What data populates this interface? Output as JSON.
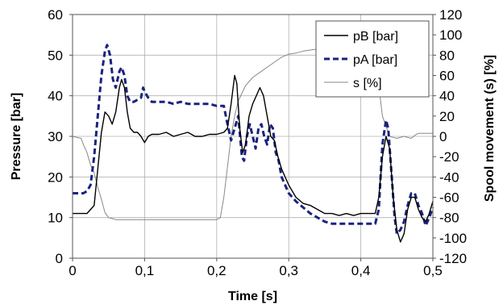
{
  "chart_data": {
    "type": "line",
    "xlabel": "Time [s]",
    "ylabel_left": "Pressure [bar]",
    "ylabel_right": "Spool movement (s) [%]",
    "xlim": [
      0,
      0.5
    ],
    "ylim_left": [
      0,
      60
    ],
    "ylim_right": [
      -120,
      120
    ],
    "x_ticks": [
      0,
      0.1,
      0.2,
      0.3,
      0.4,
      0.5
    ],
    "x_tick_labels": [
      "0",
      "0,1",
      "0,2",
      "0,3",
      "0,4",
      "0,5"
    ],
    "y_left_ticks": [
      0,
      10,
      20,
      30,
      40,
      50,
      60
    ],
    "y_left_tick_labels": [
      "0",
      "10",
      "20",
      "30",
      "40",
      "50",
      "60"
    ],
    "y_right_ticks": [
      -120,
      -100,
      -80,
      -60,
      -40,
      -20,
      0,
      20,
      40,
      60,
      80,
      100,
      120
    ],
    "y_right_tick_labels": [
      "-120",
      "-100",
      "-80",
      "-60",
      "-40",
      "-20",
      "0",
      "20",
      "40",
      "60",
      "80",
      "100",
      "120"
    ],
    "grid": true,
    "legend_position": "top-right",
    "series": [
      {
        "name": "pB [bar]",
        "axis": "left",
        "color": "#000000",
        "style": "solid",
        "points": [
          [
            0,
            11
          ],
          [
            0.02,
            11
          ],
          [
            0.03,
            13
          ],
          [
            0.035,
            22
          ],
          [
            0.04,
            31
          ],
          [
            0.045,
            36
          ],
          [
            0.05,
            35
          ],
          [
            0.055,
            33
          ],
          [
            0.06,
            36
          ],
          [
            0.065,
            42
          ],
          [
            0.068,
            44
          ],
          [
            0.072,
            42
          ],
          [
            0.076,
            36
          ],
          [
            0.08,
            32
          ],
          [
            0.085,
            31
          ],
          [
            0.09,
            31
          ],
          [
            0.095,
            30
          ],
          [
            0.1,
            28.5
          ],
          [
            0.105,
            30
          ],
          [
            0.11,
            30.5
          ],
          [
            0.12,
            30.5
          ],
          [
            0.13,
            31
          ],
          [
            0.14,
            30
          ],
          [
            0.15,
            30.5
          ],
          [
            0.16,
            31
          ],
          [
            0.17,
            30
          ],
          [
            0.18,
            30
          ],
          [
            0.19,
            30.5
          ],
          [
            0.2,
            30.5
          ],
          [
            0.21,
            31
          ],
          [
            0.215,
            32
          ],
          [
            0.22,
            38
          ],
          [
            0.225,
            45
          ],
          [
            0.228,
            43
          ],
          [
            0.232,
            32
          ],
          [
            0.236,
            26
          ],
          [
            0.24,
            28
          ],
          [
            0.245,
            35
          ],
          [
            0.25,
            38
          ],
          [
            0.255,
            40
          ],
          [
            0.26,
            42
          ],
          [
            0.265,
            40
          ],
          [
            0.27,
            35
          ],
          [
            0.275,
            30
          ],
          [
            0.28,
            29
          ],
          [
            0.285,
            25
          ],
          [
            0.29,
            22
          ],
          [
            0.295,
            20
          ],
          [
            0.3,
            18
          ],
          [
            0.31,
            15
          ],
          [
            0.32,
            13.5
          ],
          [
            0.33,
            13
          ],
          [
            0.34,
            12
          ],
          [
            0.35,
            11
          ],
          [
            0.36,
            11
          ],
          [
            0.37,
            10.5
          ],
          [
            0.38,
            11
          ],
          [
            0.39,
            10.5
          ],
          [
            0.4,
            11
          ],
          [
            0.41,
            11
          ],
          [
            0.42,
            11
          ],
          [
            0.425,
            15
          ],
          [
            0.43,
            25
          ],
          [
            0.435,
            30
          ],
          [
            0.44,
            27
          ],
          [
            0.445,
            15
          ],
          [
            0.45,
            7
          ],
          [
            0.455,
            4
          ],
          [
            0.46,
            6
          ],
          [
            0.465,
            12
          ],
          [
            0.47,
            15
          ],
          [
            0.475,
            15
          ],
          [
            0.48,
            12
          ],
          [
            0.485,
            10
          ],
          [
            0.49,
            9
          ],
          [
            0.495,
            11
          ],
          [
            0.5,
            14
          ]
        ]
      },
      {
        "name": "pA [bar]",
        "axis": "left",
        "color": "#1a237e",
        "style": "dashed",
        "points": [
          [
            0,
            16
          ],
          [
            0.015,
            16
          ],
          [
            0.02,
            16.5
          ],
          [
            0.025,
            18
          ],
          [
            0.03,
            25
          ],
          [
            0.035,
            35
          ],
          [
            0.04,
            45
          ],
          [
            0.045,
            51
          ],
          [
            0.048,
            52.5
          ],
          [
            0.052,
            50
          ],
          [
            0.056,
            44
          ],
          [
            0.06,
            42
          ],
          [
            0.065,
            46
          ],
          [
            0.068,
            47
          ],
          [
            0.072,
            45
          ],
          [
            0.076,
            40
          ],
          [
            0.08,
            38.5
          ],
          [
            0.085,
            38.5
          ],
          [
            0.09,
            39
          ],
          [
            0.095,
            39.5
          ],
          [
            0.098,
            42
          ],
          [
            0.1,
            41
          ],
          [
            0.105,
            39.5
          ],
          [
            0.11,
            38.5
          ],
          [
            0.12,
            38.5
          ],
          [
            0.13,
            38.5
          ],
          [
            0.14,
            38
          ],
          [
            0.15,
            38.5
          ],
          [
            0.16,
            38
          ],
          [
            0.17,
            38
          ],
          [
            0.18,
            38
          ],
          [
            0.19,
            38
          ],
          [
            0.2,
            37.5
          ],
          [
            0.21,
            37.5
          ],
          [
            0.215,
            33
          ],
          [
            0.22,
            29
          ],
          [
            0.225,
            32
          ],
          [
            0.23,
            35
          ],
          [
            0.235,
            25
          ],
          [
            0.238,
            24
          ],
          [
            0.242,
            30
          ],
          [
            0.246,
            33
          ],
          [
            0.25,
            30
          ],
          [
            0.254,
            27
          ],
          [
            0.258,
            32
          ],
          [
            0.262,
            33
          ],
          [
            0.266,
            30
          ],
          [
            0.27,
            28
          ],
          [
            0.274,
            33
          ],
          [
            0.278,
            32
          ],
          [
            0.282,
            26
          ],
          [
            0.286,
            24
          ],
          [
            0.29,
            20
          ],
          [
            0.3,
            16
          ],
          [
            0.31,
            14
          ],
          [
            0.32,
            12.5
          ],
          [
            0.33,
            11
          ],
          [
            0.34,
            10
          ],
          [
            0.35,
            9
          ],
          [
            0.36,
            8.5
          ],
          [
            0.38,
            8.5
          ],
          [
            0.4,
            8.5
          ],
          [
            0.41,
            8.5
          ],
          [
            0.42,
            8.5
          ],
          [
            0.425,
            12
          ],
          [
            0.43,
            28
          ],
          [
            0.435,
            34
          ],
          [
            0.438,
            32
          ],
          [
            0.443,
            20
          ],
          [
            0.447,
            10
          ],
          [
            0.45,
            6
          ],
          [
            0.455,
            7
          ],
          [
            0.46,
            9
          ],
          [
            0.465,
            13
          ],
          [
            0.47,
            16
          ],
          [
            0.475,
            16
          ],
          [
            0.48,
            13
          ],
          [
            0.485,
            11
          ],
          [
            0.49,
            8
          ],
          [
            0.495,
            10
          ],
          [
            0.5,
            12.5
          ]
        ]
      },
      {
        "name": "s [%]",
        "axis": "right",
        "color": "#888888",
        "style": "solid",
        "points": [
          [
            0,
            0
          ],
          [
            0.012,
            -2
          ],
          [
            0.015,
            -8
          ],
          [
            0.02,
            -16
          ],
          [
            0.025,
            -28
          ],
          [
            0.03,
            -36
          ],
          [
            0.035,
            -50
          ],
          [
            0.04,
            -62
          ],
          [
            0.045,
            -75
          ],
          [
            0.05,
            -80
          ],
          [
            0.055,
            -81
          ],
          [
            0.06,
            -82
          ],
          [
            0.07,
            -82
          ],
          [
            0.08,
            -82
          ],
          [
            0.1,
            -82
          ],
          [
            0.12,
            -82
          ],
          [
            0.15,
            -82
          ],
          [
            0.18,
            -82
          ],
          [
            0.2,
            -82
          ],
          [
            0.205,
            -80
          ],
          [
            0.21,
            -60
          ],
          [
            0.215,
            -30
          ],
          [
            0.22,
            0
          ],
          [
            0.225,
            20
          ],
          [
            0.23,
            35
          ],
          [
            0.24,
            50
          ],
          [
            0.25,
            58
          ],
          [
            0.26,
            63
          ],
          [
            0.27,
            68
          ],
          [
            0.28,
            73
          ],
          [
            0.29,
            78
          ],
          [
            0.3,
            81
          ],
          [
            0.31,
            82
          ],
          [
            0.32,
            84
          ],
          [
            0.33,
            85
          ],
          [
            0.34,
            86
          ],
          [
            0.35,
            86
          ],
          [
            0.36,
            86
          ],
          [
            0.38,
            86
          ],
          [
            0.4,
            86
          ],
          [
            0.42,
            86
          ],
          [
            0.425,
            50
          ],
          [
            0.43,
            20
          ],
          [
            0.435,
            10
          ],
          [
            0.44,
            0
          ],
          [
            0.445,
            -1
          ],
          [
            0.45,
            -2
          ],
          [
            0.46,
            0
          ],
          [
            0.47,
            -2
          ],
          [
            0.475,
            1
          ],
          [
            0.48,
            3
          ],
          [
            0.49,
            3
          ],
          [
            0.5,
            3
          ]
        ]
      }
    ]
  }
}
